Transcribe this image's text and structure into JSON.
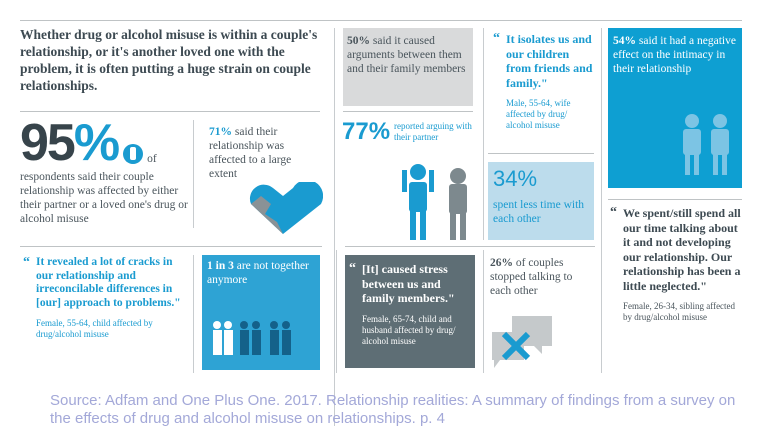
{
  "headline": "Whether drug or alcohol misuse is within a couple's relationship, or it's another loved one with the problem, it is often putting a huge strain on couple relationships.",
  "stat95": {
    "value": "95",
    "pct": "%",
    "of": "of",
    "text": "respondents said their couple relationship was affected by either their partner or a loved one's drug or alcohol misuse"
  },
  "stat71": {
    "value": "71%",
    "text": "said their relationship was affected to a large extent"
  },
  "stat50": {
    "value": "50%",
    "text": "said it caused arguments between them and their family members"
  },
  "stat77": {
    "value": "77%",
    "text": "reported arguing with their partner"
  },
  "quote_isolates": {
    "text": "It isolates us and our children from friends and family.\"",
    "attribution": "Male, 55-64, wife affected by drug/ alcohol misuse"
  },
  "stat34": {
    "value": "34%",
    "text": "spent less time with each other"
  },
  "stat54": {
    "value": "54%",
    "text": "said it had a negative effect on the intimacy in their relationship"
  },
  "quote_spent": {
    "text": "We spent/still spend all our time talking about it and not developing our relationship. Our relationship has been a little neglected.\"",
    "attribution": "Female, 26-34, sibling affected by drug/alcohol misuse"
  },
  "quote_cracks": {
    "text": "It revealed a lot of cracks in our relationship and irreconcilable differences in [our] approach to problems.\"",
    "attribution": "Female, 55-64, child affected by drug/alcohol misuse"
  },
  "stat1in3": {
    "value": "1 in 3",
    "text": "are not together anymore"
  },
  "quote_stress": {
    "text": "[It] caused stress between us and family members.\"",
    "attribution": "Female, 65-74, child and husband affected by drug/ alcohol misuse"
  },
  "stat26": {
    "value": "26%",
    "text": "of couples stopped talking to each other"
  },
  "quote_mark": "“",
  "source": "Source: Adfam and One Plus One. 2017. Relationship realities: A summary of findings from a survey on the effects of drug and alcohol misuse on relationships. p. 4",
  "colors": {
    "blue": "#1a9bd0",
    "lightblue": "#bcdcec",
    "gray": "#d9dadb",
    "darkgray": "#5e6e75"
  }
}
